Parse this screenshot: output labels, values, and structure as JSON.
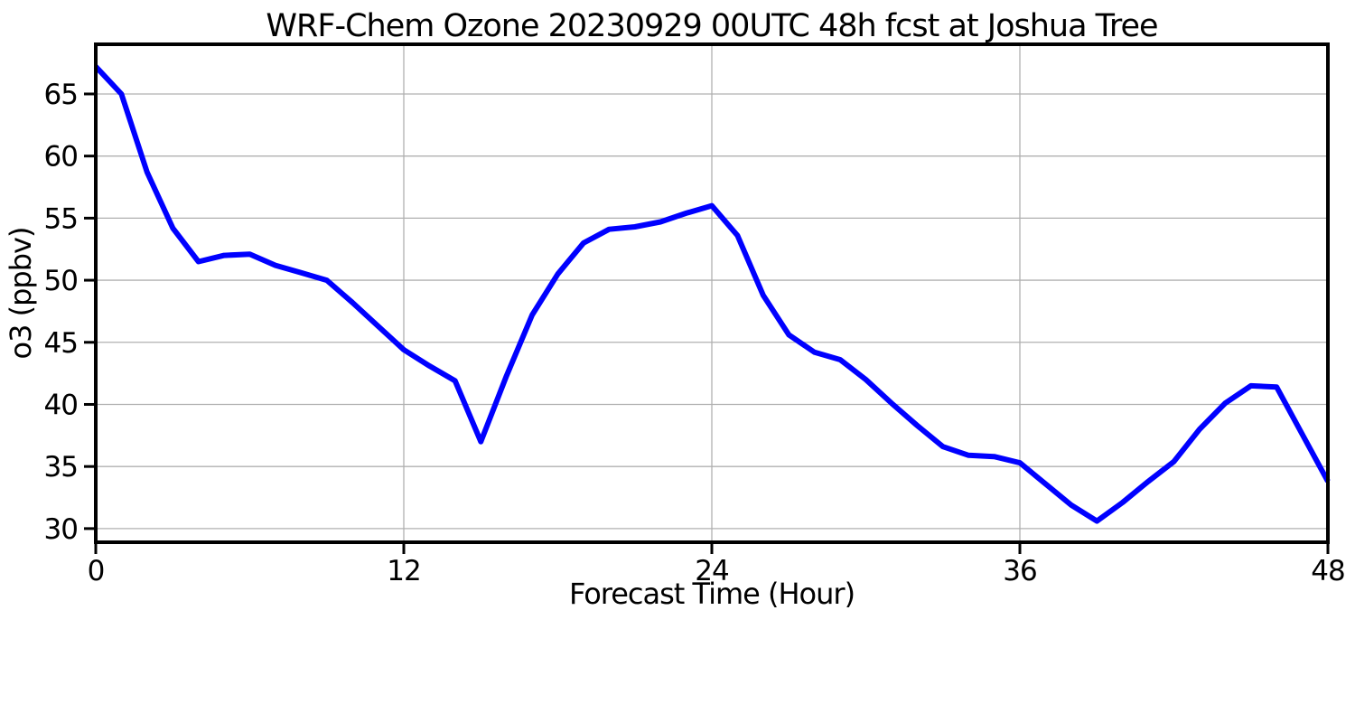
{
  "figure": {
    "background_color": "#ffffff"
  },
  "chart_data": {
    "type": "line",
    "title": "WRF-Chem Ozone  20230929 00UTC 48h fcst at Joshua Tree",
    "xlabel": "Forecast Time (Hour)",
    "ylabel": "o3  (ppbv)",
    "series": [
      {
        "name": "o3",
        "x": [
          0,
          1,
          2,
          3,
          4,
          5,
          6,
          7,
          8,
          9,
          10,
          11,
          12,
          13,
          14,
          15,
          16,
          17,
          18,
          19,
          20,
          21,
          22,
          23,
          24,
          25,
          26,
          27,
          28,
          29,
          30,
          31,
          32,
          33,
          34,
          35,
          36,
          37,
          38,
          39,
          40,
          41,
          42,
          43,
          44,
          45,
          46,
          47,
          48
        ],
        "y": [
          67.2,
          65.0,
          58.7,
          54.2,
          51.5,
          52.0,
          52.1,
          51.2,
          50.6,
          50.0,
          48.2,
          46.3,
          44.4,
          43.1,
          41.9,
          37.0,
          42.3,
          47.2,
          50.5,
          53.0,
          54.1,
          54.3,
          54.7,
          55.4,
          56.0,
          53.6,
          48.8,
          45.6,
          44.2,
          43.6,
          42.0,
          40.1,
          38.3,
          36.6,
          35.9,
          35.8,
          35.3,
          33.6,
          31.9,
          30.6,
          32.1,
          33.8,
          35.4,
          38.0,
          40.1,
          41.5,
          41.4,
          37.6,
          33.8
        ]
      }
    ],
    "xlim": [
      0,
      48
    ],
    "ylim": [
      28.9,
      69.0
    ],
    "xticks": [
      0,
      12,
      24,
      36,
      48
    ],
    "yticks": [
      30,
      35,
      40,
      45,
      50,
      55,
      60,
      65
    ],
    "grid": true,
    "legend_position": "none",
    "line_color": "#0000ff",
    "grid_color": "#b0b0b0",
    "axis_color": "#000000",
    "line_width": 6
  }
}
